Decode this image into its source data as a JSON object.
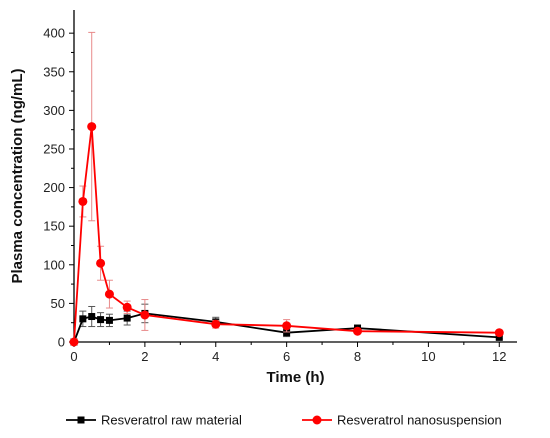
{
  "chart_data": {
    "type": "line",
    "title": "",
    "xlabel": "Time (h)",
    "ylabel": "Plasma concentration (ng/mL)",
    "xlim": [
      0,
      12.5
    ],
    "ylim": [
      0,
      430
    ],
    "xticks": [
      0,
      2,
      4,
      6,
      8,
      10,
      12
    ],
    "yticks": [
      0,
      50,
      100,
      150,
      200,
      250,
      300,
      350,
      400
    ],
    "grid": false,
    "legend_position": "bottom",
    "series": [
      {
        "name": "Resveratrol raw material",
        "color": "#000000",
        "marker": "square",
        "x": [
          0,
          0.25,
          0.5,
          0.75,
          1,
          1.5,
          2,
          4,
          6,
          8,
          12
        ],
        "y": [
          0,
          30,
          33,
          29,
          28,
          31,
          37,
          26,
          12,
          18,
          6
        ],
        "error": [
          0,
          10,
          13,
          9,
          8,
          9,
          12,
          6,
          5,
          4,
          2
        ]
      },
      {
        "name": "Resveratrol nanosuspension",
        "color": "#ff0000",
        "marker": "circle",
        "x": [
          0,
          0.25,
          0.5,
          0.75,
          1,
          1.5,
          2,
          4,
          6,
          8,
          12
        ],
        "y": [
          0,
          182,
          279,
          102,
          62,
          45,
          35,
          23,
          21,
          14,
          12
        ],
        "error": [
          0,
          20,
          122,
          22,
          18,
          8,
          20,
          5,
          8,
          3,
          2
        ]
      }
    ]
  }
}
